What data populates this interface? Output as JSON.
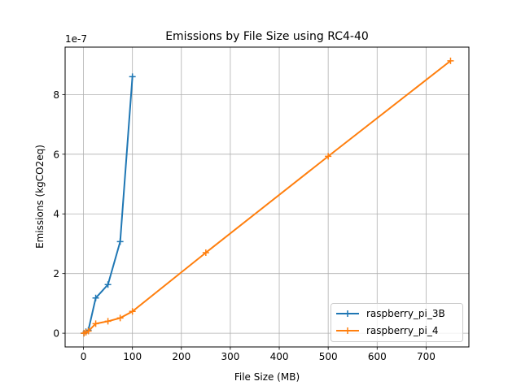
{
  "chart_data": {
    "type": "line",
    "title": "Emissions by File Size using RC4-40",
    "xlabel": "File Size (MB)",
    "ylabel": "Emissions (kgCO2eq)",
    "y_offset_label": "1e-7",
    "y_scale": 1e-07,
    "xlim": [
      -37.5,
      787.5
    ],
    "ylim": [
      -0.46,
      9.59
    ],
    "xticks": [
      0,
      100,
      200,
      300,
      400,
      500,
      600,
      700
    ],
    "yticks": [
      0,
      2,
      4,
      6,
      8
    ],
    "grid": true,
    "legend_position": "lower-right",
    "series": [
      {
        "name": "raspberry_pi_3B",
        "color": "#1f77b4",
        "marker": "+",
        "x": [
          1,
          5,
          10,
          25,
          50,
          75,
          100
        ],
        "y": [
          0.0,
          0.05,
          0.1,
          1.18,
          1.63,
          3.07,
          8.6
        ]
      },
      {
        "name": "raspberry_pi_4",
        "color": "#ff7f0e",
        "marker": "+",
        "x": [
          1,
          5,
          10,
          25,
          50,
          75,
          100,
          250,
          500,
          750
        ],
        "y": [
          0.0,
          0.03,
          0.07,
          0.32,
          0.4,
          0.51,
          0.73,
          2.7,
          5.93,
          9.13
        ]
      }
    ]
  }
}
